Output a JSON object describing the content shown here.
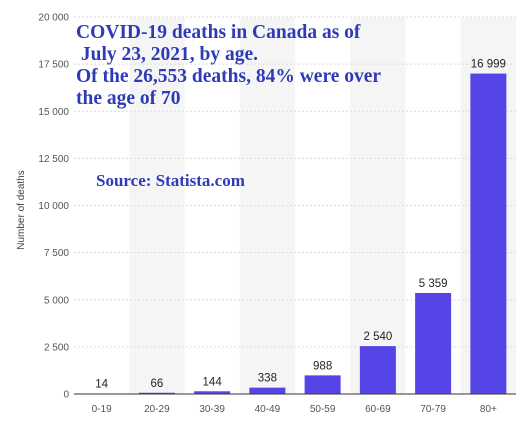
{
  "annotation": {
    "lines": [
      "COVID-19 deaths in Canada as of",
      " July 23, 2021, by age.",
      "Of the 26,553 deaths, 84% were over",
      "the age of 70"
    ],
    "source": "Source: Statista.com"
  },
  "chart_data": {
    "type": "bar",
    "categories": [
      "0-19",
      "20-29",
      "30-39",
      "40-49",
      "50-59",
      "60-69",
      "70-79",
      "80+"
    ],
    "values": [
      14,
      66,
      144,
      338,
      988,
      2540,
      5359,
      16999
    ],
    "value_labels": [
      "14",
      "66",
      "144",
      "338",
      "988",
      "2 540",
      "5 359",
      "16 999"
    ],
    "ylabel": "Number of deaths",
    "xlabel": "",
    "ylim": [
      0,
      20000
    ],
    "yticks": [
      0,
      2500,
      5000,
      7500,
      10000,
      12500,
      15000,
      17500,
      20000
    ],
    "ytick_labels": [
      "0",
      "2 500",
      "5 000",
      "7 500",
      "10 000",
      "12 500",
      "15 000",
      "17 500",
      "20 000"
    ],
    "grid": "horizontal",
    "colors": {
      "bar": "#5544e6",
      "band": "#f5f5f5",
      "grid": "#dcdcdc",
      "axis": "#333333"
    }
  }
}
